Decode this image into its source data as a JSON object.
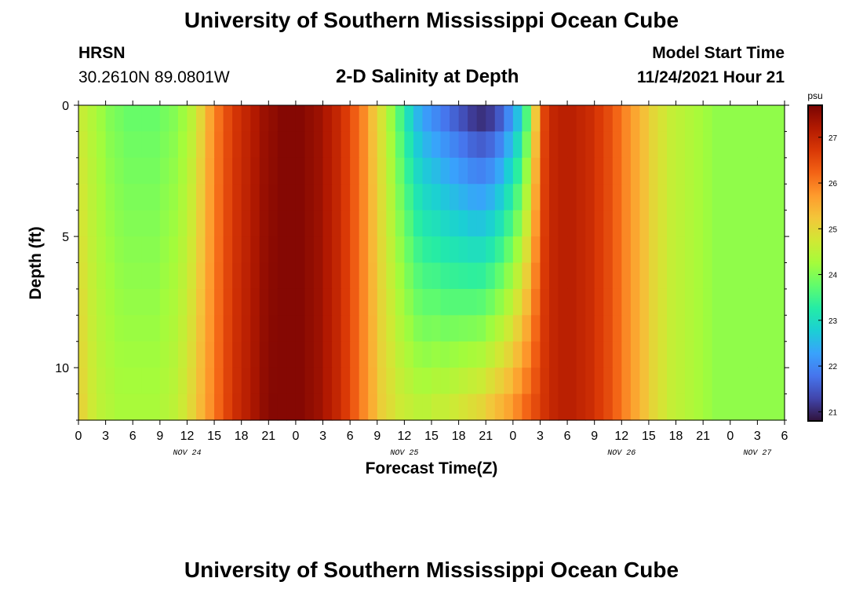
{
  "header": {
    "title": "University of Southern Mississippi Ocean Cube",
    "station": "HRSN",
    "coords": "30.2610N  89.0801W",
    "plot_title": "2-D Salinity at Depth",
    "model_label": "Model Start Time",
    "model_time": "11/24/2021 Hour 21"
  },
  "footer": {
    "title": "University of Southern Mississippi Ocean Cube"
  },
  "colors": {
    "scale": [
      "#30123b",
      "#4145ab",
      "#4675ed",
      "#39a2fc",
      "#1bcfd4",
      "#24eca6",
      "#61fc6c",
      "#a4fc3b",
      "#d1e834",
      "#f3c63a",
      "#fe9b2d",
      "#f36315",
      "#d93806",
      "#b11901",
      "#7a0403"
    ]
  },
  "chart_data": {
    "type": "heatmap",
    "title": "2-D Salinity at Depth",
    "xlabel": "Forecast Time(Z)",
    "ylabel": "Depth (ft)",
    "x_ticks": [
      "0",
      "3",
      "6",
      "9",
      "12",
      "15",
      "18",
      "21",
      "0",
      "3",
      "6",
      "9",
      "12",
      "15",
      "18",
      "21",
      "0",
      "3",
      "6",
      "9",
      "12",
      "15",
      "18",
      "21",
      "0",
      "3",
      "6"
    ],
    "date_labels": [
      {
        "label": "NOV 24",
        "hour": 12
      },
      {
        "label": "NOV 25",
        "hour": 36
      },
      {
        "label": "NOV 26",
        "hour": 60
      },
      {
        "label": "NOV 27",
        "hour": 75
      }
    ],
    "x_range": [
      0,
      78
    ],
    "y_ticks": [
      "0",
      "5",
      "10"
    ],
    "y_range": [
      0,
      12
    ],
    "colorbar": {
      "unit": "psu",
      "range": [
        20.8,
        27.7
      ],
      "ticks": [
        "21",
        "22",
        "23",
        "24",
        "25",
        "26",
        "27"
      ]
    },
    "surface_profile": [
      24.6,
      24.4,
      24.2,
      24.0,
      23.9,
      23.8,
      23.8,
      23.8,
      23.8,
      23.9,
      24.0,
      24.2,
      24.5,
      25.0,
      25.6,
      26.1,
      26.5,
      26.8,
      27.0,
      27.2,
      27.4,
      27.5,
      27.6,
      27.6,
      27.6,
      27.5,
      27.4,
      27.2,
      27.0,
      26.7,
      26.3,
      25.9,
      25.3,
      24.8,
      24.2,
      23.6,
      23.0,
      22.5,
      22.2,
      22.0,
      21.8,
      21.6,
      21.4,
      21.2,
      21.1,
      21.2,
      21.5,
      22.0,
      22.6,
      23.6,
      25.2,
      26.6,
      27.0,
      27.1,
      27.1,
      27.0,
      26.9,
      26.7,
      26.5,
      26.2,
      25.9,
      25.6,
      25.3,
      25.0,
      24.8,
      24.6,
      24.5,
      24.4,
      24.3,
      24.2,
      24.1,
      24.1,
      24.1,
      24.1,
      24.1,
      24.1,
      24.1,
      24.1
    ],
    "bottom_profile": [
      25.0,
      24.7,
      24.5,
      24.4,
      24.3,
      24.3,
      24.3,
      24.3,
      24.3,
      24.4,
      24.5,
      24.7,
      25.0,
      25.4,
      25.8,
      26.2,
      26.6,
      26.9,
      27.1,
      27.3,
      27.5,
      27.6,
      27.6,
      27.6,
      27.6,
      27.5,
      27.4,
      27.2,
      27.0,
      26.7,
      26.3,
      25.9,
      25.5,
      25.1,
      24.9,
      24.7,
      24.6,
      24.5,
      24.5,
      24.6,
      24.6,
      24.7,
      24.8,
      24.9,
      25.0,
      25.2,
      25.4,
      25.6,
      25.9,
      26.2,
      26.5,
      26.8,
      27.0,
      27.1,
      27.1,
      27.0,
      26.9,
      26.7,
      26.5,
      26.2,
      25.9,
      25.6,
      25.3,
      25.0,
      24.8,
      24.6,
      24.5,
      24.4,
      24.3,
      24.2,
      24.1,
      24.1,
      24.1,
      24.1,
      24.1,
      24.1,
      24.1,
      24.1
    ]
  }
}
